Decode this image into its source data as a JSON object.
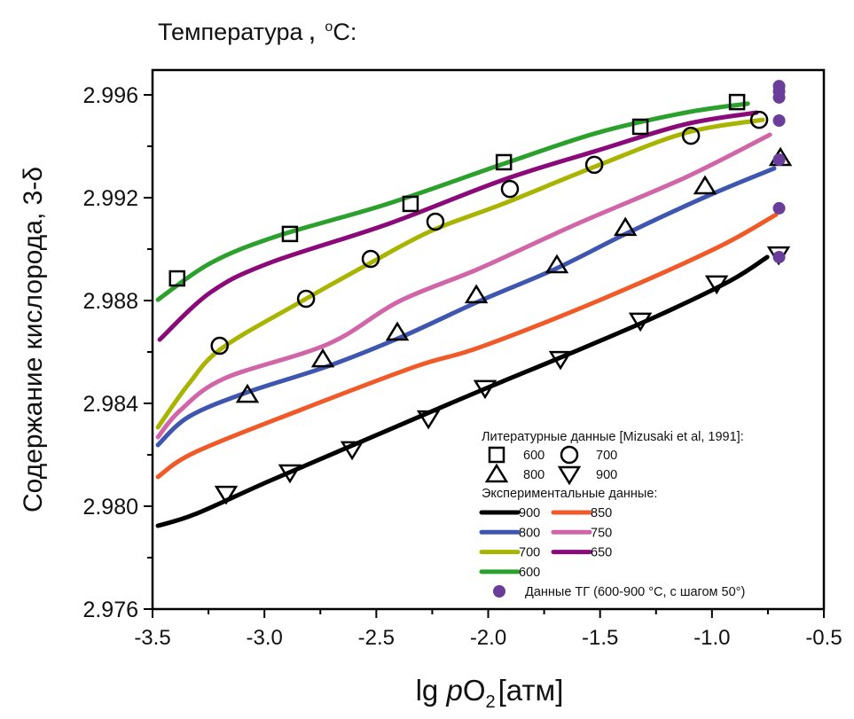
{
  "chart_data": {
    "type": "line",
    "title": "Температура , °C:",
    "title_parts": {
      "main": "Температура",
      "comma": ",",
      "deg": "o",
      "unit": "C:"
    },
    "xlabel": "lg pO2 [атм]",
    "xlabel_parts": {
      "lg": "lg ",
      "p": "p",
      "O": "O",
      "sub": "2",
      "unit": "[атм]"
    },
    "ylabel": "Содержание кислорода,  3-δ",
    "xlim": [
      -3.5,
      -0.5
    ],
    "ylim": [
      2.976,
      2.997
    ],
    "xticks": [
      -3.5,
      -3.0,
      -2.5,
      -2.0,
      -1.5,
      -1.0,
      -0.5
    ],
    "xtick_labels": [
      "-3.5",
      "-3.0",
      "-2.5",
      "-2.0",
      "-1.5",
      "-1.0",
      "-0.5"
    ],
    "yticks": [
      2.976,
      2.98,
      2.984,
      2.988,
      2.992,
      2.996
    ],
    "ytick_labels": [
      "2.976",
      "2.980",
      "2.984",
      "2.988",
      "2.992",
      "2.996"
    ],
    "grid": false,
    "legend_position": "bottom-right",
    "series": [
      {
        "name": "600",
        "group": "experimental",
        "color": "#2ca02c",
        "x": [
          -3.476,
          -3.242,
          -2.953,
          -2.45,
          -1.934,
          -1.514,
          -1.118,
          -0.84
        ],
        "y": [
          2.98803,
          2.98945,
          2.99048,
          2.99176,
          2.99331,
          2.99452,
          2.99531,
          2.99566
        ]
      },
      {
        "name": "650",
        "group": "experimental",
        "color": "#8b0a7a",
        "x": [
          -3.468,
          -3.242,
          -2.981,
          -2.45,
          -1.934,
          -1.514,
          -1.118,
          -0.801
        ],
        "y": [
          2.98648,
          2.98831,
          2.98945,
          2.99097,
          2.99269,
          2.99383,
          2.99486,
          2.99531
        ]
      },
      {
        "name": "700",
        "group": "experimental",
        "color": "#a8b400",
        "x": [
          -3.476,
          -3.338,
          -3.191,
          -2.834,
          -2.529,
          -2.252,
          -1.934,
          -1.514,
          -1.118,
          -0.773
        ],
        "y": [
          2.98307,
          2.98476,
          2.98614,
          2.98797,
          2.98945,
          2.99072,
          2.99176,
          2.99324,
          2.99452,
          2.99503
        ]
      },
      {
        "name": "750",
        "group": "experimental",
        "color": "#d065a8",
        "x": [
          -3.476,
          -3.377,
          -3.179,
          -2.715,
          -2.398,
          -2.041,
          -1.606,
          -1.118,
          -0.741
        ],
        "y": [
          2.98269,
          2.98372,
          2.98497,
          2.98631,
          2.98797,
          2.98924,
          2.99097,
          2.99279,
          2.99445
        ]
      },
      {
        "name": "800",
        "group": "experimental",
        "color": "#3f56b0",
        "x": [
          -3.476,
          -3.338,
          -3.084,
          -2.715,
          -2.386,
          -2.041,
          -1.697,
          -1.379,
          -1.011,
          -0.722
        ],
        "y": [
          2.98238,
          2.98348,
          2.98441,
          2.98545,
          2.98659,
          2.98797,
          2.98924,
          2.99062,
          2.9921,
          2.99314
        ]
      },
      {
        "name": "850",
        "group": "experimental",
        "color": "#f05a28",
        "x": [
          -3.476,
          -3.31,
          -2.846,
          -2.319,
          -2.041,
          -1.514,
          -0.983,
          -0.714
        ],
        "y": [
          2.98114,
          2.9821,
          2.98372,
          2.98545,
          2.98617,
          2.98797,
          2.99003,
          2.99134
        ]
      },
      {
        "name": "900",
        "group": "experimental",
        "color": "#000000",
        "x": [
          -3.476,
          -3.31,
          -2.981,
          -2.584,
          -2.188,
          -1.934,
          -1.645,
          -1.249,
          -0.92,
          -0.753
        ],
        "y": [
          2.97924,
          2.97969,
          2.98097,
          2.98245,
          2.98393,
          2.98486,
          2.9859,
          2.98738,
          2.98876,
          2.98969
        ]
      }
    ],
    "literature": [
      {
        "name": "600",
        "marker": "square",
        "x": [
          -3.39,
          -2.886,
          -2.347,
          -1.93,
          -1.32,
          -0.888
        ],
        "y": [
          2.98886,
          2.99059,
          2.99176,
          2.99338,
          2.99476,
          2.99572
        ]
      },
      {
        "name": "700",
        "marker": "circle",
        "x": [
          -3.2,
          -2.814,
          -2.525,
          -2.236,
          -1.903,
          -1.526,
          -1.094,
          -0.789
        ],
        "y": [
          2.98624,
          2.98807,
          2.98962,
          2.99107,
          2.99234,
          2.99328,
          2.99441,
          2.99503
        ]
      },
      {
        "name": "800",
        "marker": "triangle-up",
        "x": [
          -3.076,
          -2.739,
          -2.406,
          -2.053,
          -1.693,
          -1.387,
          -1.031,
          -0.694
        ],
        "y": [
          2.98434,
          2.98572,
          2.98676,
          2.98821,
          2.98938,
          2.99083,
          2.99245,
          2.99355
        ]
      },
      {
        "name": "900",
        "marker": "triangle-down",
        "x": [
          -3.171,
          -2.886,
          -2.608,
          -2.267,
          -2.014,
          -1.677,
          -1.32,
          -0.979,
          -0.702
        ],
        "y": [
          2.98048,
          2.98131,
          2.98221,
          2.98341,
          2.98459,
          2.98572,
          2.98721,
          2.98866,
          2.98979
        ]
      }
    ],
    "tg_points": {
      "name": "Данные ТГ (600-900 °С, с шагом 50°)",
      "color": "#6a3d9a",
      "x": [
        -0.7,
        -0.7,
        -0.7,
        -0.7,
        -0.7,
        -0.7,
        -0.7
      ],
      "y": [
        2.99634,
        2.99614,
        2.9959,
        2.995,
        2.99348,
        2.99159,
        2.98969
      ]
    },
    "legend": {
      "literature_header": "Литературные данные [Mizusaki et al, 1991]:",
      "literature_items": [
        {
          "marker": "square",
          "label": "600"
        },
        {
          "marker": "circle",
          "label": "700"
        },
        {
          "marker": "triangle-up",
          "label": "800"
        },
        {
          "marker": "triangle-down",
          "label": "900"
        }
      ],
      "experimental_header": "Экспериментальные данные:",
      "experimental_items": [
        {
          "label": "900",
          "color": "#000000"
        },
        {
          "label": "850",
          "color": "#f05a28"
        },
        {
          "label": "800",
          "color": "#3f56b0"
        },
        {
          "label": "750",
          "color": "#d065a8"
        },
        {
          "label": "700",
          "color": "#a8b400"
        },
        {
          "label": "650",
          "color": "#8b0a7a"
        },
        {
          "label": "600",
          "color": "#2ca02c"
        }
      ],
      "tg_label": "Данные ТГ (600-900 °С, с шагом 50°)"
    }
  }
}
